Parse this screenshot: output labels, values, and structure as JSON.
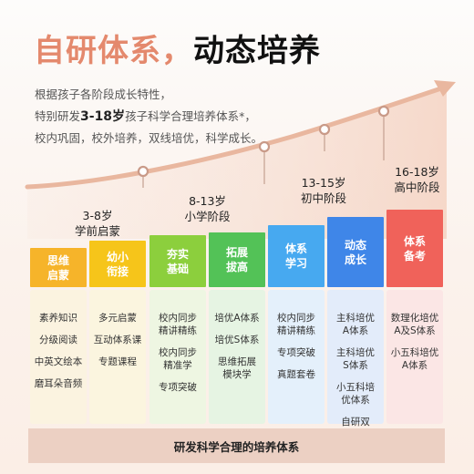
{
  "title": {
    "part1": "自研体系，",
    "part2": "动态培养"
  },
  "intro": {
    "line1": "根据孩子各阶段成长特性，",
    "line2_pre": "特别研发",
    "line2_bold": "3-18岁",
    "line2_post": "孩子科学合理培养体系*，",
    "line3": "校内巩固，校外培养，双线培优，科学成长。"
  },
  "stages": [
    {
      "age": "3-8岁",
      "name": "学前启蒙"
    },
    {
      "age": "8-13岁",
      "name": "小学阶段"
    },
    {
      "age": "13-15岁",
      "name": "初中阶段"
    },
    {
      "age": "16-18岁",
      "name": "高中阶段"
    }
  ],
  "columns": [
    {
      "title": [
        "思维",
        "启蒙"
      ],
      "color": "#f6b42a",
      "bg": "#fbf3e0",
      "items": [
        "素养知识",
        "分级阅读",
        "中英文绘本",
        "磨耳朵音频"
      ]
    },
    {
      "title": [
        "幼小",
        "衔接"
      ],
      "color": "#f6c51a",
      "bg": "#fbf5df",
      "items": [
        "多元启蒙",
        "互动体系课",
        "专题课程"
      ]
    },
    {
      "title": [
        "夯实",
        "基础"
      ],
      "color": "#8ccf3d",
      "bg": "#eef6e2",
      "items": [
        "校内同步\n精讲精练",
        "校内同步\n精准学",
        "专项突破"
      ]
    },
    {
      "title": [
        "拓展",
        "拔高"
      ],
      "color": "#53c257",
      "bg": "#e6f4e3",
      "items": [
        "培优A体系",
        "培优S体系",
        "思维拓展\n模块学"
      ]
    },
    {
      "title": [
        "体系",
        "学习"
      ],
      "color": "#47a9f0",
      "bg": "#e4f0fb",
      "items": [
        "校内同步\n精讲精练",
        "专项突破",
        "真题套卷"
      ]
    },
    {
      "title": [
        "动态",
        "成长"
      ],
      "color": "#3f86e8",
      "bg": "#e3ecfa",
      "items": [
        "主科培优\nA体系",
        "主科培优\nS体系",
        "小五科培\n优体系",
        "自研双\n优英语"
      ]
    },
    {
      "title": [
        "体系",
        "备考"
      ],
      "color": "#f0625a",
      "bg": "#fbe6e5",
      "items": [
        "数理化培优\nA及S体系",
        "小五科培优\nA体系"
      ]
    }
  ],
  "footer": "研发科学合理的培养体系"
}
